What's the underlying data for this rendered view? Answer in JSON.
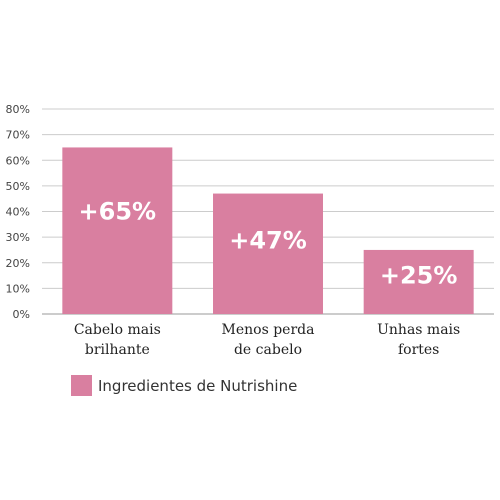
{
  "colors": {
    "bar": "#d97fa0",
    "grid": "#cccccc",
    "axis": "#999999"
  },
  "legend": {
    "label": "Ingredientes de Nutrishine",
    "placement": "bottom-left"
  },
  "chart_data": {
    "type": "bar",
    "categories": [
      [
        "Cabelo mais",
        "brilhante"
      ],
      [
        "Menos perda",
        "de cabelo"
      ],
      [
        "Unhas mais",
        "fortes"
      ]
    ],
    "series": [
      {
        "name": "Ingredientes de Nutrishine",
        "values": [
          65,
          47,
          25
        ]
      }
    ],
    "data_labels": [
      "+65%",
      "+47%",
      "+25%"
    ],
    "yticks": [
      "0%",
      "10%",
      "20%",
      "30%",
      "40%",
      "50%",
      "60%",
      "70%",
      "80%"
    ],
    "ylim": [
      0,
      80
    ],
    "grid": true,
    "title": "",
    "xlabel": "",
    "ylabel": ""
  }
}
